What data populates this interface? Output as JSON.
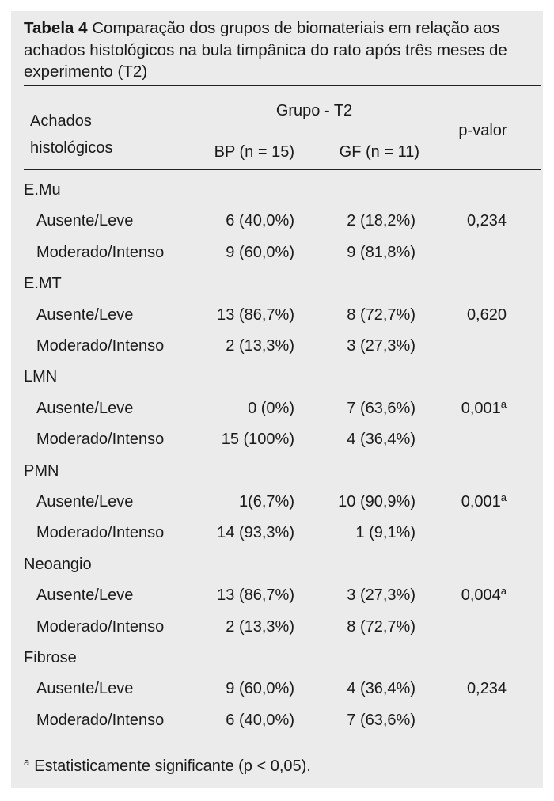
{
  "title": {
    "label": "Tabela 4",
    "text": "Comparação dos grupos de biomateriais em relação aos achados histológicos na bula timpânica do rato após três meses de experimento (T2)"
  },
  "header": {
    "row_label": "Achados histológicos",
    "group": "Grupo - T2",
    "columns": [
      "BP (n = 15)",
      "GF (n = 11)"
    ],
    "p": "p-valor"
  },
  "groups": [
    {
      "name": "E.Mu",
      "rows": [
        {
          "label": "Ausente/Leve",
          "bp": "6 (40,0%)",
          "gf": "2 (18,2%)",
          "p": "0,234"
        },
        {
          "label": "Moderado/Intenso",
          "bp": "9 (60,0%)",
          "gf": "9 (81,8%)"
        }
      ]
    },
    {
      "name": "E.MT",
      "rows": [
        {
          "label": "Ausente/Leve",
          "bp": "13 (86,7%)",
          "gf": "8 (72,7%)",
          "p": "0,620"
        },
        {
          "label": "Moderado/Intenso",
          "bp": "2 (13,3%)",
          "gf": "3 (27,3%)"
        }
      ]
    },
    {
      "name": "LMN",
      "rows": [
        {
          "label": "Ausente/Leve",
          "bp": "0 (0%)",
          "gf": "7 (63,6%)",
          "p": "0,001",
          "note": "a"
        },
        {
          "label": "Moderado/Intenso",
          "bp": "15 (100%)",
          "gf": "4 (36,4%)"
        }
      ]
    },
    {
      "name": "PMN",
      "rows": [
        {
          "label": "Ausente/Leve",
          "bp": "1(6,7%)",
          "gf": "10 (90,9%)",
          "p": "0,001",
          "note": "a"
        },
        {
          "label": "Moderado/Intenso",
          "bp": "14 (93,3%)",
          "gf": "1 (9,1%)"
        }
      ]
    },
    {
      "name": "Neoangio",
      "rows": [
        {
          "label": "Ausente/Leve",
          "bp": "13 (86,7%)",
          "gf": "3 (27,3%)",
          "p": "0,004",
          "note": "a"
        },
        {
          "label": "Moderado/Intenso",
          "bp": "2 (13,3%)",
          "gf": "8 (72,7%)"
        }
      ]
    },
    {
      "name": "Fibrose",
      "rows": [
        {
          "label": "Ausente/Leve",
          "bp": "9 (60,0%)",
          "gf": "4 (36,4%)",
          "p": "0,234"
        },
        {
          "label": "Moderado/Intenso",
          "bp": "6 (40,0%)",
          "gf": "7 (63,6%)"
        }
      ]
    }
  ],
  "footnote": {
    "marker": "a",
    "text": "Estatisticamente significante (p < 0,05)."
  }
}
